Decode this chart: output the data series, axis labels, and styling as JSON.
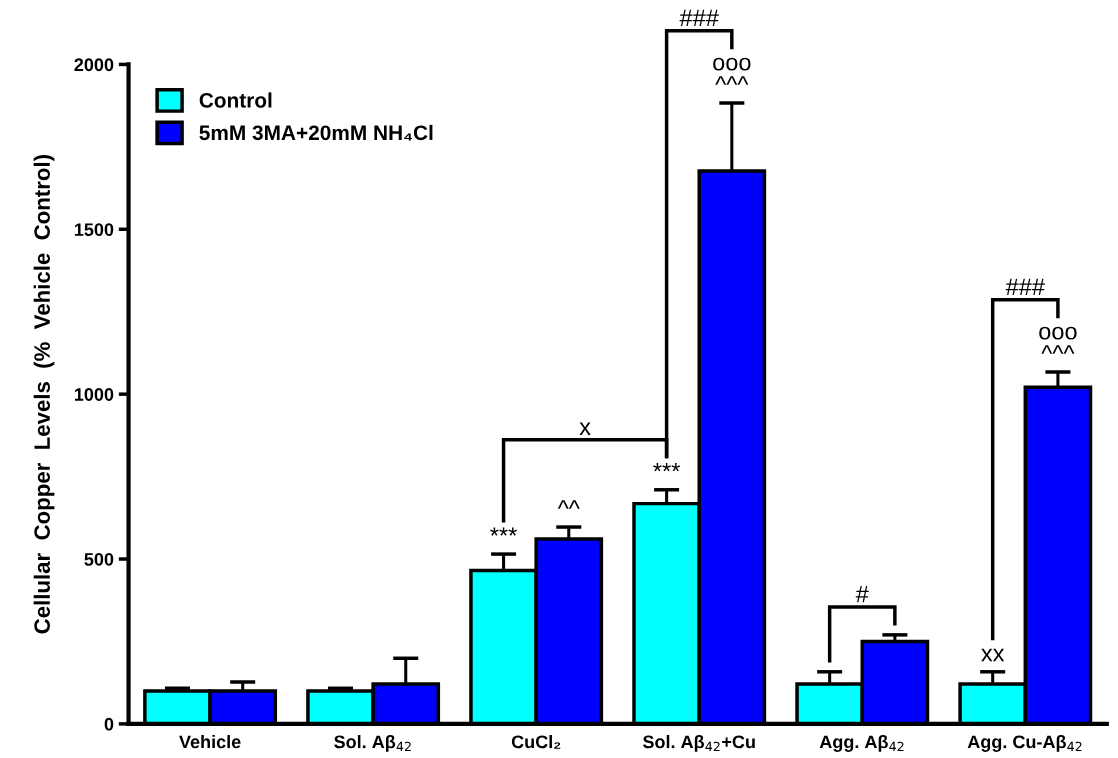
{
  "chart_data": {
    "type": "bar",
    "ylabel": "Cellular  Copper  Levels  (%  Vehicle  Control)",
    "categories": [
      "Vehicle",
      "Sol. Aβ$_{42}$",
      "CuCl₂",
      "Sol. Aβ$_{42}$+Cu",
      "Agg. Aβ$_{42}$",
      "Agg. Cu-Aβ$_{42}$"
    ],
    "series": [
      {
        "name": "Control",
        "color": "#00ffff",
        "values": [
          100,
          100,
          465,
          668,
          121,
          121
        ],
        "errors": [
          8,
          8,
          50,
          42,
          37,
          37
        ]
      },
      {
        "name": "5mM 3MA+20mM NH₄Cl",
        "color": "#0000ff",
        "values": [
          100,
          121,
          561,
          1677,
          250,
          1021
        ],
        "errors": [
          27,
          78,
          36,
          206,
          20,
          46
        ]
      }
    ],
    "ylim": [
      0,
      2000
    ],
    "yticks": [
      0,
      500,
      1000,
      1500,
      2000
    ],
    "legend": "top left",
    "grid": false,
    "annotations": [
      {
        "text": "***",
        "x": "CuCl₂",
        "y": 515
      },
      {
        "text": "***",
        "x": "Sol. Aβ$_{42}$+Cu",
        "y": 710
      },
      {
        "text": "xx",
        "x": "Agg. Cu-Aβ$_{42}$",
        "y": 158
      },
      "^^",
      "^^^",
      "ooo",
      "###",
      "#",
      "^^^",
      "ooo",
      "###",
      "x"
    ]
  }
}
